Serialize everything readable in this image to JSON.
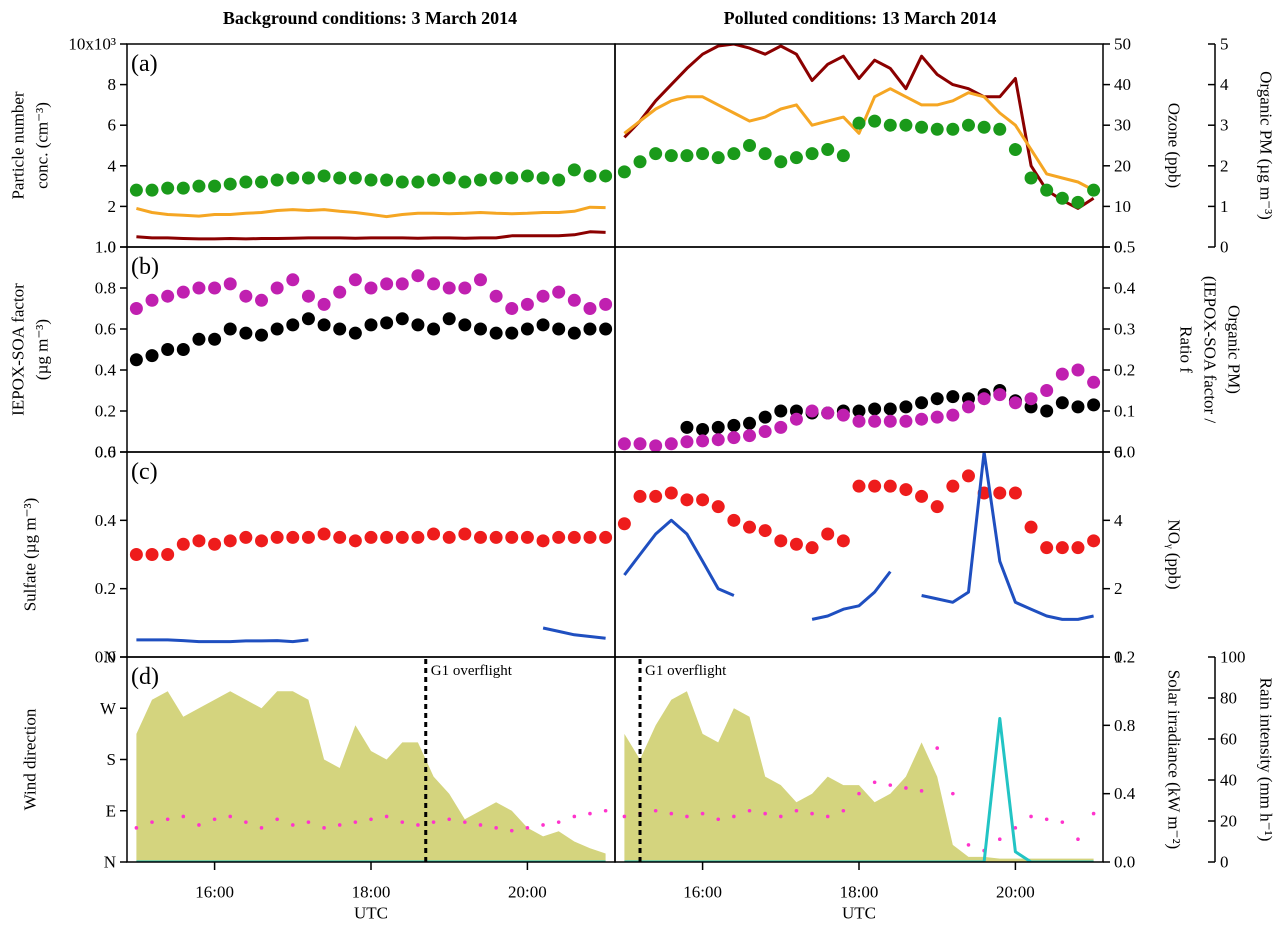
{
  "chart_data": [
    {
      "type": "combo",
      "label": "(a)",
      "column_titles": [
        "Background conditions: 3 March 2014",
        "Polluted conditions: 13 March 2014"
      ],
      "ylabel": [
        "Particle number",
        "conc. (cm⁻³)"
      ],
      "ylabel_color": "#8b0000",
      "ylim": [
        0,
        10
      ],
      "yticks": [
        0,
        2,
        4,
        6,
        8,
        {
          "value": 10,
          "label": "10x10³"
        }
      ],
      "y2label": [
        "Ozone (ppb)"
      ],
      "y2label_color": "#f5a623",
      "y2lim": [
        0,
        50
      ],
      "y2ticks": [
        0,
        10,
        20,
        30,
        40,
        50
      ],
      "y3label": [
        "Organic PM (µg m⁻³)"
      ],
      "y3label_color": "#1a9a1a",
      "y3lim": [
        0,
        5
      ],
      "y3ticks": [
        0,
        1,
        2,
        3,
        4,
        5
      ],
      "x": [
        15,
        15.2,
        15.4,
        15.6,
        15.8,
        16,
        16.2,
        16.4,
        16.6,
        16.8,
        17,
        17.2,
        17.4,
        17.6,
        17.8,
        18,
        18.2,
        18.4,
        18.6,
        18.8,
        19,
        19.2,
        19.4,
        19.6,
        19.8,
        20,
        20.2,
        20.4,
        20.6,
        20.8,
        21
      ],
      "series": [
        {
          "column": 0,
          "type": "line",
          "axis": "y",
          "color": "#8b0000",
          "values": [
            0.5,
            0.45,
            0.45,
            0.42,
            0.4,
            0.4,
            0.42,
            0.4,
            0.42,
            0.42,
            0.43,
            0.45,
            0.45,
            0.45,
            0.43,
            0.45,
            0.45,
            0.45,
            0.43,
            0.45,
            0.45,
            0.43,
            0.45,
            0.45,
            0.55,
            0.55,
            0.55,
            0.55,
            0.6,
            0.75,
            0.72
          ]
        },
        {
          "column": 0,
          "type": "line",
          "axis": "y2",
          "color": "#f5a623",
          "values": [
            9.5,
            8.5,
            8,
            7.8,
            7.6,
            8,
            8,
            8.3,
            8.5,
            9,
            9.2,
            9,
            9.2,
            8.8,
            8.5,
            8,
            7.5,
            8,
            8.3,
            8.3,
            8.2,
            8.3,
            8.5,
            8.3,
            8.2,
            8.3,
            8.5,
            8.5,
            8.8,
            9.8,
            9.7
          ]
        },
        {
          "column": 0,
          "type": "scatter",
          "axis": "y3",
          "color": "#1a9a1a",
          "values": [
            1.4,
            1.4,
            1.45,
            1.45,
            1.5,
            1.5,
            1.55,
            1.6,
            1.6,
            1.65,
            1.7,
            1.7,
            1.75,
            1.7,
            1.7,
            1.65,
            1.65,
            1.6,
            1.6,
            1.65,
            1.7,
            1.6,
            1.65,
            1.7,
            1.7,
            1.75,
            1.7,
            1.65,
            1.9,
            1.75,
            1.75
          ]
        },
        {
          "column": 1,
          "type": "line",
          "axis": "y",
          "color": "#8b0000",
          "values": [
            5.4,
            6.2,
            7.2,
            8,
            8.8,
            9.5,
            9.9,
            10,
            9.8,
            9.5,
            9.9,
            9.5,
            8.2,
            9,
            9.4,
            8.3,
            9.2,
            8.8,
            7.8,
            9.4,
            8.5,
            8,
            7.8,
            7.4,
            7.4,
            8.3,
            4,
            2.8,
            2.3,
            1.9,
            2.4
          ]
        },
        {
          "column": 1,
          "type": "line",
          "axis": "y2",
          "color": "#f5a623",
          "values": [
            28,
            31,
            34,
            36,
            37,
            37,
            35,
            33,
            31,
            32,
            34,
            35,
            30,
            31,
            32,
            28,
            37,
            39,
            37,
            35,
            35,
            36,
            38,
            37,
            33,
            30,
            24,
            18,
            17,
            16,
            14
          ]
        },
        {
          "column": 1,
          "type": "scatter",
          "axis": "y3",
          "color": "#1a9a1a",
          "values": [
            1.85,
            2.1,
            2.3,
            2.25,
            2.25,
            2.3,
            2.2,
            2.3,
            2.5,
            2.3,
            2.1,
            2.2,
            2.3,
            2.4,
            2.25,
            3.05,
            3.1,
            3.0,
            3.0,
            2.95,
            2.9,
            2.9,
            3.0,
            2.95,
            2.9,
            2.4,
            1.7,
            1.4,
            1.2,
            1.1,
            1.4
          ]
        }
      ]
    },
    {
      "type": "combo",
      "label": "(b)",
      "ylabel": [
        "IEPOX-SOA factor",
        "(µg m⁻³)"
      ],
      "ylabel_color": "#000000",
      "ylim": [
        0,
        1
      ],
      "yticks": [
        {
          "value": 0,
          "label": "0.0"
        },
        0.2,
        0.4,
        0.6,
        0.8,
        {
          "value": 1,
          "label": "1.0"
        }
      ],
      "y2label": [
        "Ratio f",
        "(IEPOX-SOA factor /",
        "Organic PM)"
      ],
      "y2label_color": "#9a1a8a",
      "y2lim": [
        0,
        0.5
      ],
      "y2ticks": [
        {
          "value": 0,
          "label": "0.0"
        },
        0.1,
        0.2,
        0.3,
        0.4,
        0.5
      ],
      "x": [
        15,
        15.2,
        15.4,
        15.6,
        15.8,
        16,
        16.2,
        16.4,
        16.6,
        16.8,
        17,
        17.2,
        17.4,
        17.6,
        17.8,
        18,
        18.2,
        18.4,
        18.6,
        18.8,
        19,
        19.2,
        19.4,
        19.6,
        19.8,
        20,
        20.2,
        20.4,
        20.6,
        20.8,
        21
      ],
      "series": [
        {
          "column": 0,
          "type": "scatter",
          "axis": "y2",
          "color": "#c020b0",
          "values": [
            0.35,
            0.37,
            0.38,
            0.39,
            0.4,
            0.4,
            0.41,
            0.38,
            0.37,
            0.4,
            0.42,
            0.38,
            0.36,
            0.39,
            0.42,
            0.4,
            0.41,
            0.41,
            0.43,
            0.41,
            0.4,
            0.4,
            0.42,
            0.38,
            0.35,
            0.36,
            0.38,
            0.39,
            0.37,
            0.35,
            0.36
          ]
        },
        {
          "column": 0,
          "type": "scatter",
          "axis": "y",
          "color": "#000000",
          "values": [
            0.45,
            0.47,
            0.5,
            0.5,
            0.55,
            0.55,
            0.6,
            0.58,
            0.57,
            0.6,
            0.62,
            0.65,
            0.62,
            0.6,
            0.58,
            0.62,
            0.63,
            0.65,
            0.62,
            0.6,
            0.65,
            0.62,
            0.6,
            0.58,
            0.58,
            0.6,
            0.62,
            0.6,
            0.58,
            0.6,
            0.6
          ]
        },
        {
          "column": 1,
          "type": "scatter",
          "axis": "y",
          "color": "#000000",
          "values": [
            null,
            null,
            null,
            null,
            0.12,
            0.11,
            0.12,
            0.13,
            0.14,
            0.17,
            0.2,
            0.2,
            0.19,
            0.19,
            0.2,
            0.2,
            0.21,
            0.21,
            0.22,
            0.24,
            0.26,
            0.27,
            0.26,
            0.28,
            0.3,
            0.25,
            0.22,
            0.2,
            0.24,
            0.22,
            0.23
          ]
        },
        {
          "column": 1,
          "type": "scatter",
          "axis": "y2",
          "color": "#c020b0",
          "values": [
            0.02,
            0.02,
            0.015,
            0.02,
            0.025,
            0.027,
            0.03,
            0.035,
            0.04,
            0.05,
            0.06,
            0.08,
            0.1,
            0.095,
            0.09,
            0.075,
            0.075,
            0.075,
            0.075,
            0.08,
            0.085,
            0.09,
            0.11,
            0.13,
            0.14,
            0.12,
            0.13,
            0.15,
            0.19,
            0.2,
            0.17
          ]
        }
      ]
    },
    {
      "type": "combo",
      "label": "(c)",
      "ylabel": [
        "Sulfate (µg m⁻³)"
      ],
      "ylabel_color": "#ee1c1c",
      "ylim": [
        0,
        0.6
      ],
      "yticks": [
        {
          "value": 0,
          "label": "0.0"
        },
        0.2,
        0.4,
        0.6
      ],
      "y2label": [
        "NOᵧ (ppb)"
      ],
      "y2label_color": "#1f4fc0",
      "y2lim": [
        0,
        6
      ],
      "y2ticks": [
        0,
        2,
        4,
        6
      ],
      "x": [
        15,
        15.2,
        15.4,
        15.6,
        15.8,
        16,
        16.2,
        16.4,
        16.6,
        16.8,
        17,
        17.2,
        17.4,
        17.6,
        17.8,
        18,
        18.2,
        18.4,
        18.6,
        18.8,
        19,
        19.2,
        19.4,
        19.6,
        19.8,
        20,
        20.2,
        20.4,
        20.6,
        20.8,
        21
      ],
      "series": [
        {
          "column": 0,
          "type": "scatter",
          "axis": "y",
          "color": "#ee1c1c",
          "values": [
            0.3,
            0.3,
            0.3,
            0.33,
            0.34,
            0.33,
            0.34,
            0.35,
            0.34,
            0.35,
            0.35,
            0.35,
            0.36,
            0.35,
            0.34,
            0.35,
            0.35,
            0.35,
            0.35,
            0.36,
            0.35,
            0.36,
            0.35,
            0.35,
            0.35,
            0.35,
            0.34,
            0.35,
            0.35,
            0.35,
            0.35
          ]
        },
        {
          "column": 0,
          "type": "line",
          "axis": "y2",
          "color": "#1f4fc0",
          "values": [
            0.5,
            0.5,
            0.5,
            0.48,
            0.45,
            0.45,
            0.45,
            0.47,
            0.47,
            0.48,
            0.45,
            0.5,
            null,
            null,
            null,
            null,
            null,
            null,
            null,
            null,
            null,
            null,
            null,
            null,
            null,
            null,
            0.85,
            0.75,
            0.65,
            0.6,
            0.55
          ]
        },
        {
          "column": 1,
          "type": "scatter",
          "axis": "y",
          "color": "#ee1c1c",
          "values": [
            0.39,
            0.47,
            0.47,
            0.48,
            0.46,
            0.46,
            0.44,
            0.4,
            0.38,
            0.37,
            0.34,
            0.33,
            0.32,
            0.36,
            0.34,
            0.5,
            0.5,
            0.5,
            0.49,
            0.47,
            0.44,
            0.5,
            0.53,
            0.48,
            0.48,
            0.48,
            0.38,
            0.32,
            0.32,
            0.32,
            0.34
          ]
        },
        {
          "column": 1,
          "type": "line",
          "axis": "y2",
          "color": "#1f4fc0",
          "values": [
            2.4,
            3.0,
            3.6,
            4.0,
            3.6,
            2.8,
            2.0,
            1.8,
            null,
            null,
            null,
            null,
            1.1,
            1.2,
            1.4,
            1.5,
            1.9,
            2.5,
            null,
            1.8,
            1.7,
            1.6,
            1.9,
            6.0,
            2.8,
            1.6,
            1.4,
            1.2,
            1.1,
            1.1,
            1.2
          ]
        }
      ]
    },
    {
      "type": "combo",
      "label": "(d)",
      "ylabel": [
        "Wind direction"
      ],
      "ylabel_color": "#ff33cc",
      "ylim": [
        0,
        360
      ],
      "yticks": [
        {
          "value": 0,
          "label": "N"
        },
        {
          "value": 90,
          "label": "E"
        },
        {
          "value": 180,
          "label": "S"
        },
        {
          "value": 270,
          "label": "W"
        },
        {
          "value": 360,
          "label": "N"
        }
      ],
      "y2label": [
        "Solar irradiance (kW m⁻²)"
      ],
      "y2label_color": "#c8c85a",
      "y2lim": [
        0,
        1.2
      ],
      "y2ticks": [
        {
          "value": 0,
          "label": "0.0"
        },
        0.4,
        0.8,
        1.2
      ],
      "y3label": [
        "Rain intensity (mm h⁻¹)"
      ],
      "y3label_color": "#22c4c4",
      "y3lim": [
        0,
        100
      ],
      "y3ticks": [
        0,
        20,
        40,
        60,
        80,
        100
      ],
      "xlabel": "UTC",
      "xlim": [
        14.88,
        21.12
      ],
      "xticks": [
        {
          "value": 16,
          "label": "16:00"
        },
        {
          "value": 18,
          "label": "18:00"
        },
        {
          "value": 20,
          "label": "20:00"
        }
      ],
      "annotations": [
        {
          "text": "G1 overflight",
          "column": 0,
          "x": 18.7
        },
        {
          "text": "G1 overflight",
          "column": 1,
          "x": 15.2
        }
      ],
      "x": [
        15,
        15.2,
        15.4,
        15.6,
        15.8,
        16,
        16.2,
        16.4,
        16.6,
        16.8,
        17,
        17.2,
        17.4,
        17.6,
        17.8,
        18,
        18.2,
        18.4,
        18.6,
        18.8,
        19,
        19.2,
        19.4,
        19.6,
        19.8,
        20,
        20.2,
        20.4,
        20.6,
        20.8,
        21
      ],
      "series": [
        {
          "column": 0,
          "type": "area",
          "axis": "y2",
          "color": "#d4d47e",
          "values": [
            0.75,
            0.95,
            1.0,
            0.85,
            0.9,
            0.95,
            1.0,
            0.95,
            0.9,
            1.0,
            1.0,
            0.95,
            0.6,
            0.55,
            0.8,
            0.65,
            0.6,
            0.7,
            0.7,
            0.5,
            0.4,
            0.25,
            0.3,
            0.35,
            0.3,
            0.2,
            0.15,
            0.18,
            0.12,
            0.08,
            0.05
          ]
        },
        {
          "column": 0,
          "type": "scatter",
          "axis": "y",
          "color": "#ff33cc",
          "values": [
            60,
            70,
            75,
            80,
            65,
            75,
            80,
            70,
            60,
            75,
            65,
            70,
            60,
            65,
            70,
            75,
            80,
            70,
            65,
            70,
            75,
            70,
            65,
            60,
            55,
            60,
            65,
            70,
            80,
            85,
            90
          ]
        },
        {
          "column": 0,
          "type": "line",
          "axis": "y3",
          "color": "#22c4c4",
          "values": [
            0,
            0,
            0,
            0,
            0,
            0,
            0,
            0,
            0,
            0,
            0,
            0,
            0,
            0,
            0,
            0,
            0,
            0,
            0,
            0,
            0,
            0,
            0,
            0,
            0,
            0,
            0,
            0,
            0,
            0,
            0
          ]
        },
        {
          "column": 1,
          "type": "area",
          "axis": "y2",
          "color": "#d4d47e",
          "values": [
            0.75,
            0.6,
            0.8,
            0.95,
            1.0,
            0.75,
            0.7,
            0.9,
            0.85,
            0.5,
            0.45,
            0.35,
            0.4,
            0.5,
            0.45,
            0.45,
            0.35,
            0.4,
            0.5,
            0.7,
            0.5,
            0.1,
            0.03,
            0.03,
            0.02,
            0.02,
            0.02,
            0.02,
            0.02,
            0.02,
            0.02
          ]
        },
        {
          "column": 1,
          "type": "scatter",
          "axis": "y",
          "color": "#ff33cc",
          "values": [
            80,
            85,
            90,
            85,
            80,
            85,
            75,
            80,
            90,
            85,
            80,
            90,
            85,
            80,
            90,
            120,
            140,
            135,
            130,
            125,
            200,
            120,
            30,
            20,
            40,
            60,
            80,
            75,
            70,
            40,
            85
          ]
        },
        {
          "column": 1,
          "type": "line",
          "axis": "y3",
          "color": "#22c4c4",
          "values": [
            0,
            0,
            0,
            0,
            0,
            0,
            0,
            0,
            0,
            0,
            0,
            0,
            0,
            0,
            0,
            0,
            0,
            0,
            0,
            0,
            0,
            0,
            0,
            0,
            70,
            5,
            0,
            0,
            0,
            0,
            0
          ]
        }
      ]
    }
  ]
}
